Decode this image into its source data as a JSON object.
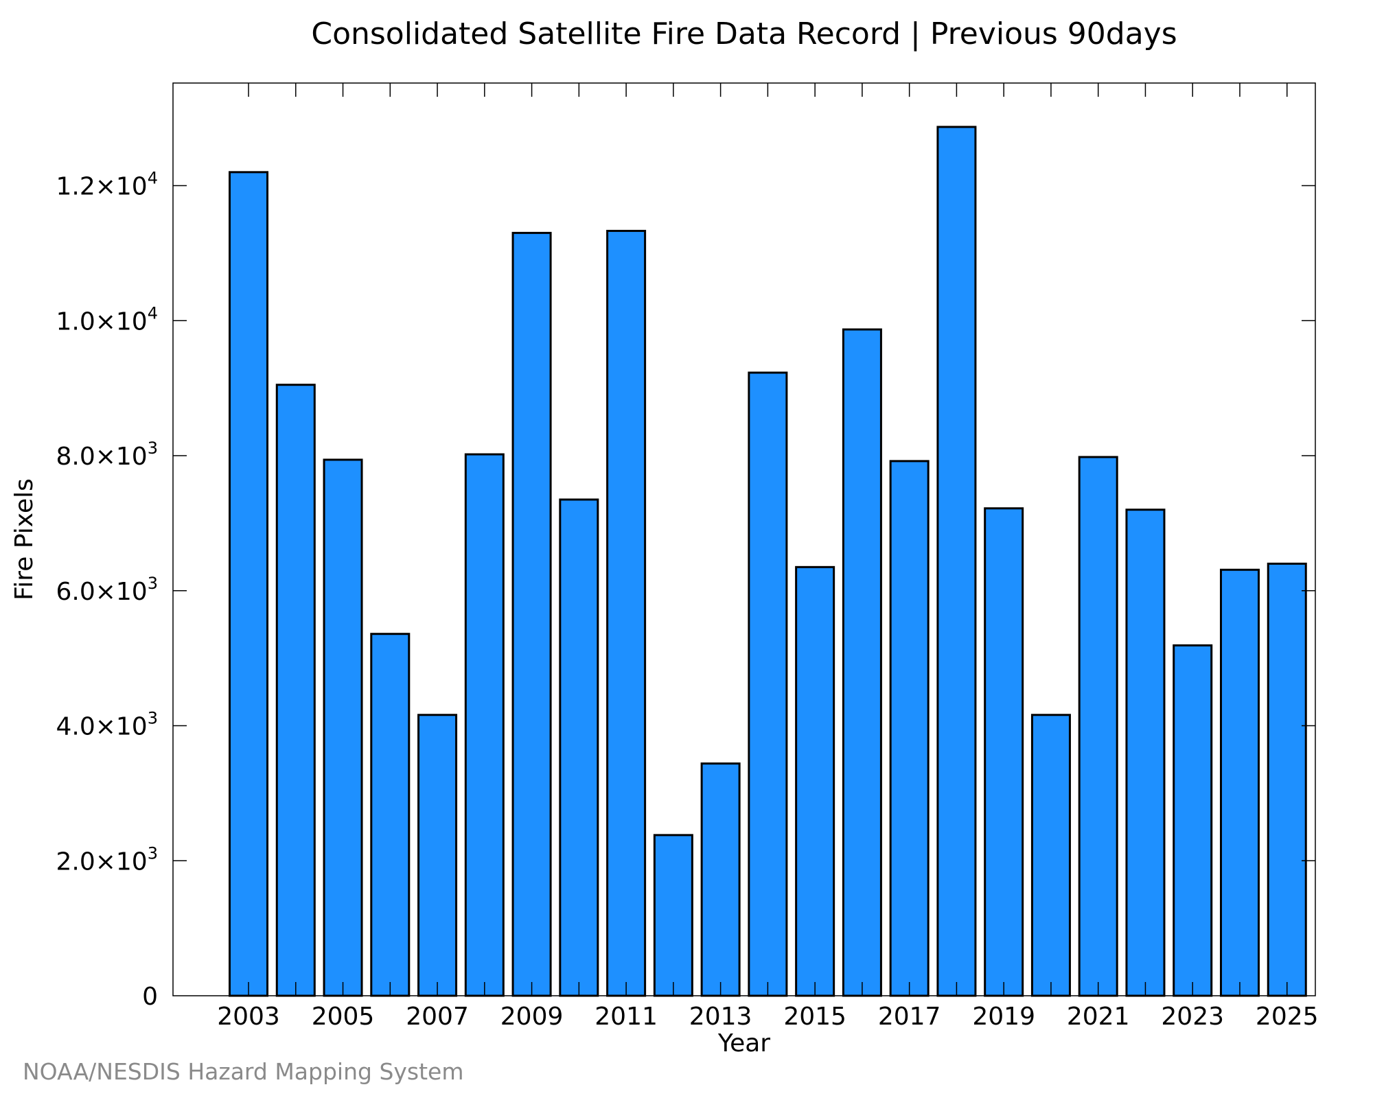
{
  "chart_data": {
    "type": "bar",
    "title": "Consolidated Satellite Fire Data Record | Previous 90days",
    "xlabel": "Year",
    "ylabel": "Fire Pixels",
    "credit": "NOAA/NESDIS Hazard Mapping System",
    "bar_color": "#1e90ff",
    "bar_edge_color": "#000000",
    "x": [
      2003,
      2004,
      2005,
      2006,
      2007,
      2008,
      2009,
      2010,
      2011,
      2012,
      2013,
      2014,
      2015,
      2016,
      2017,
      2018,
      2019,
      2020,
      2021,
      2022,
      2023,
      2024,
      2025
    ],
    "values": [
      12200,
      9050,
      7940,
      5360,
      4160,
      8020,
      11300,
      7350,
      11330,
      2380,
      3440,
      9230,
      6350,
      9870,
      7920,
      12870,
      7220,
      4160,
      7980,
      7200,
      5190,
      6310,
      6400
    ],
    "xlim": [
      2001.4,
      2025.6
    ],
    "ylim": [
      0,
      13520
    ],
    "x_ticks": [
      2003,
      2005,
      2007,
      2009,
      2011,
      2013,
      2015,
      2017,
      2019,
      2021,
      2023,
      2025
    ],
    "x_minor_ticks": [
      2004,
      2006,
      2008,
      2010,
      2012,
      2014,
      2016,
      2018,
      2020,
      2022,
      2024
    ],
    "y_ticks": [
      {
        "value": 0,
        "mantissa": "0",
        "exponent": ""
      },
      {
        "value": 2000,
        "mantissa": "2.0×10",
        "exponent": "3"
      },
      {
        "value": 4000,
        "mantissa": "4.0×10",
        "exponent": "3"
      },
      {
        "value": 6000,
        "mantissa": "6.0×10",
        "exponent": "3"
      },
      {
        "value": 8000,
        "mantissa": "8.0×10",
        "exponent": "3"
      },
      {
        "value": 10000,
        "mantissa": "1.0×10",
        "exponent": "4"
      },
      {
        "value": 12000,
        "mantissa": "1.2×10",
        "exponent": "4"
      }
    ],
    "grid": false,
    "legend": "none"
  }
}
